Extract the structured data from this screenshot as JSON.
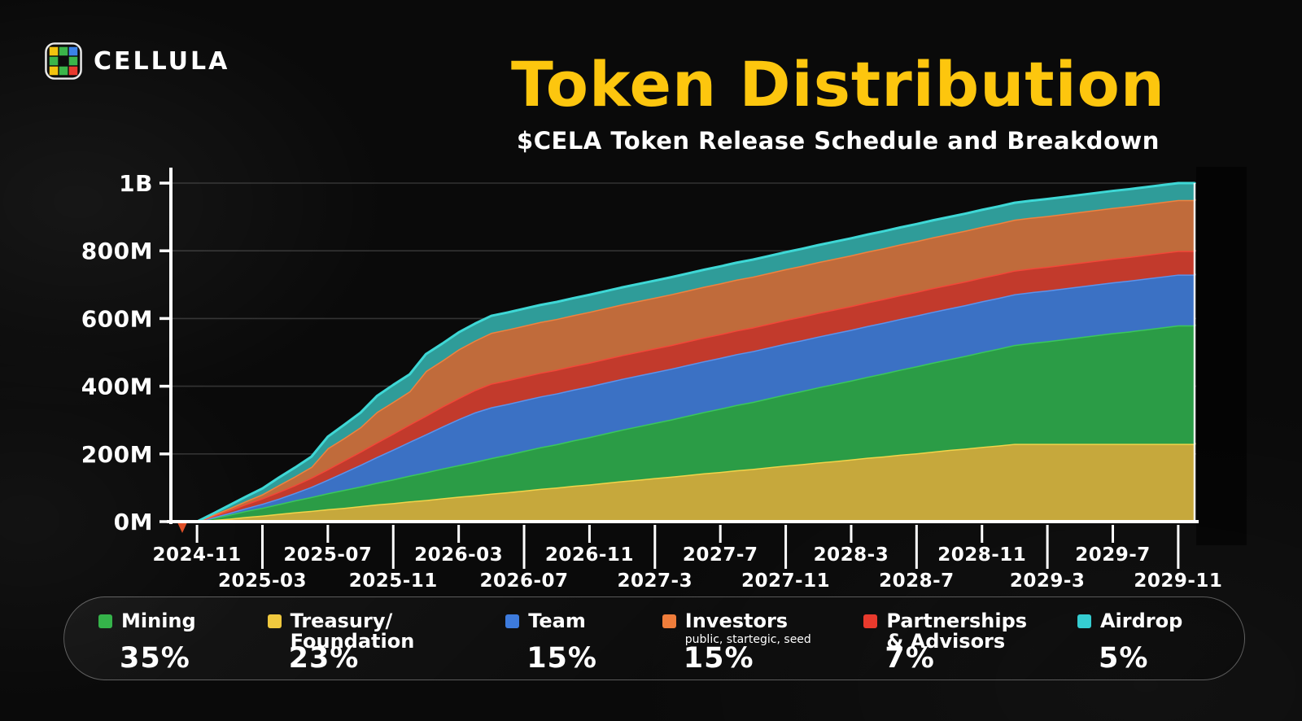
{
  "header": {
    "brand": "CELLULA",
    "title": "Token Distribution",
    "subtitle": "$CELA Token Release Schedule and Breakdown"
  },
  "colors": {
    "background": "#0a0a0a",
    "title_yellow": "#fdc60e",
    "axis_white": "#ffffff"
  },
  "chart_data": {
    "type": "area",
    "stacked": true,
    "x_start_month": "2024-10",
    "x_end_month": "2029-12",
    "x_points": 63,
    "ylabel": "",
    "xlabel": "",
    "ylim": [
      0,
      1000
    ],
    "grid": "horizontal",
    "y_ticks": [
      {
        "label": "0M",
        "value": 0
      },
      {
        "label": "200M",
        "value": 200
      },
      {
        "label": "400M",
        "value": 400
      },
      {
        "label": "600M",
        "value": 600
      },
      {
        "label": "800M",
        "value": 800
      },
      {
        "label": "1B",
        "value": 1000
      }
    ],
    "x_ticks": [
      {
        "label": "2024-11",
        "index": 1,
        "row": 1
      },
      {
        "label": "2025-03",
        "index": 5,
        "row": 2
      },
      {
        "label": "2025-07",
        "index": 9,
        "row": 1
      },
      {
        "label": "2025-11",
        "index": 13,
        "row": 2
      },
      {
        "label": "2026-03",
        "index": 17,
        "row": 1
      },
      {
        "label": "2026-07",
        "index": 21,
        "row": 2
      },
      {
        "label": "2026-11",
        "index": 25,
        "row": 1
      },
      {
        "label": "2027-3",
        "index": 29,
        "row": 2
      },
      {
        "label": "2027-7",
        "index": 33,
        "row": 1
      },
      {
        "label": "2027-11",
        "index": 37,
        "row": 2
      },
      {
        "label": "2028-3",
        "index": 41,
        "row": 1
      },
      {
        "label": "2028-7",
        "index": 45,
        "row": 2
      },
      {
        "label": "2028-11",
        "index": 49,
        "row": 1
      },
      {
        "label": "2029-3",
        "index": 53,
        "row": 2
      },
      {
        "label": "2029-7",
        "index": 57,
        "row": 1
      },
      {
        "label": "2029-11",
        "index": 61,
        "row": 2
      }
    ],
    "unit": "millions of tokens (cumulative unlocked)",
    "series": [
      {
        "name": "Treasury/Foundation",
        "total": 230,
        "fill": "#c6a83c",
        "edge": "#f2d44a",
        "values": [
          0,
          0,
          5,
          9,
          14,
          18,
          23,
          28,
          32,
          37,
          41,
          46,
          51,
          55,
          60,
          64,
          69,
          74,
          78,
          83,
          87,
          92,
          97,
          101,
          106,
          110,
          115,
          120,
          124,
          129,
          133,
          138,
          143,
          147,
          152,
          156,
          161,
          166,
          170,
          175,
          179,
          184,
          189,
          193,
          198,
          202,
          207,
          212,
          216,
          221,
          225,
          230,
          230,
          230,
          230,
          230,
          230,
          230,
          230,
          230,
          230,
          230,
          230
        ]
      },
      {
        "name": "Mining",
        "total": 350,
        "fill": "#2b9c46",
        "edge": "#3bc75c",
        "values": [
          0,
          0,
          6,
          12,
          18,
          23,
          29,
          35,
          41,
          47,
          53,
          58,
          64,
          70,
          76,
          82,
          88,
          93,
          99,
          105,
          111,
          117,
          123,
          128,
          134,
          140,
          146,
          152,
          158,
          163,
          169,
          175,
          181,
          187,
          193,
          198,
          204,
          210,
          216,
          222,
          228,
          233,
          239,
          245,
          251,
          257,
          263,
          268,
          274,
          280,
          286,
          292,
          298,
          303,
          309,
          315,
          321,
          327,
          332,
          338,
          344,
          350,
          350
        ]
      },
      {
        "name": "Team",
        "total": 150,
        "fill": "#3b71c4",
        "edge": "#5c93ec",
        "values": [
          0,
          0,
          2,
          5,
          8,
          12,
          16,
          22,
          30,
          40,
          52,
          64,
          76,
          88,
          100,
          112,
          124,
          136,
          146,
          150,
          150,
          150,
          150,
          150,
          150,
          150,
          150,
          150,
          150,
          150,
          150,
          150,
          150,
          150,
          150,
          150,
          150,
          150,
          150,
          150,
          150,
          150,
          150,
          150,
          150,
          150,
          150,
          150,
          150,
          150,
          150,
          150,
          150,
          150,
          150,
          150,
          150,
          150,
          150,
          150,
          150,
          150,
          150
        ]
      },
      {
        "name": "Partnerships & Advisors",
        "total": 70,
        "fill": "#c23a2c",
        "edge": "#f24738",
        "values": [
          0,
          0,
          4,
          8,
          12,
          16,
          20,
          23,
          27,
          31,
          35,
          39,
          43,
          47,
          51,
          55,
          59,
          62,
          66,
          70,
          70,
          70,
          70,
          70,
          70,
          70,
          70,
          70,
          70,
          70,
          70,
          70,
          70,
          70,
          70,
          70,
          70,
          70,
          70,
          70,
          70,
          70,
          70,
          70,
          70,
          70,
          70,
          70,
          70,
          70,
          70,
          70,
          70,
          70,
          70,
          70,
          70,
          70,
          70,
          70,
          70,
          70,
          70
        ]
      },
      {
        "name": "Investors",
        "total": 150,
        "fill": "#c06b3b",
        "edge": "#f0823f",
        "values": [
          0,
          0,
          3,
          6,
          9,
          12,
          20,
          26,
          32,
          62,
          66,
          72,
          90,
          94,
          98,
          132,
          136,
          144,
          146,
          150,
          150,
          150,
          150,
          150,
          150,
          150,
          150,
          150,
          150,
          150,
          150,
          150,
          150,
          150,
          150,
          150,
          150,
          150,
          150,
          150,
          150,
          150,
          150,
          150,
          150,
          150,
          150,
          150,
          150,
          150,
          150,
          150,
          150,
          150,
          150,
          150,
          150,
          150,
          150,
          150,
          150,
          150,
          150
        ]
      },
      {
        "name": "Airdrop",
        "total": 50,
        "fill": "#2f9c99",
        "edge": "#3ed8d6",
        "values": [
          0,
          0,
          4,
          9,
          13,
          17,
          22,
          26,
          30,
          34,
          39,
          43,
          47,
          50,
          50,
          50,
          50,
          50,
          50,
          50,
          50,
          50,
          50,
          50,
          50,
          50,
          50,
          50,
          50,
          50,
          50,
          50,
          50,
          50,
          50,
          50,
          50,
          50,
          50,
          50,
          50,
          50,
          50,
          50,
          50,
          50,
          50,
          50,
          50,
          50,
          50,
          50,
          50,
          50,
          50,
          50,
          50,
          50,
          50,
          50,
          50,
          50,
          50
        ]
      }
    ]
  },
  "legend": {
    "items": [
      {
        "label": "Mining",
        "pct": "35%",
        "color": "#35b34a"
      },
      {
        "label": "Treasury/",
        "label2": "Foundation",
        "pct": "23%",
        "color": "#efc83e"
      },
      {
        "label": "Team",
        "pct": "15%",
        "color": "#3d7bdd"
      },
      {
        "label": "Investors",
        "sub": "public, startegic, seed",
        "pct": "15%",
        "color": "#ef7d3b"
      },
      {
        "label": "Partnerships",
        "label2": "& Advisors",
        "pct": "7%",
        "color": "#e83a2d"
      },
      {
        "label": "Airdrop",
        "pct": "5%",
        "color": "#35cdd1"
      }
    ]
  }
}
